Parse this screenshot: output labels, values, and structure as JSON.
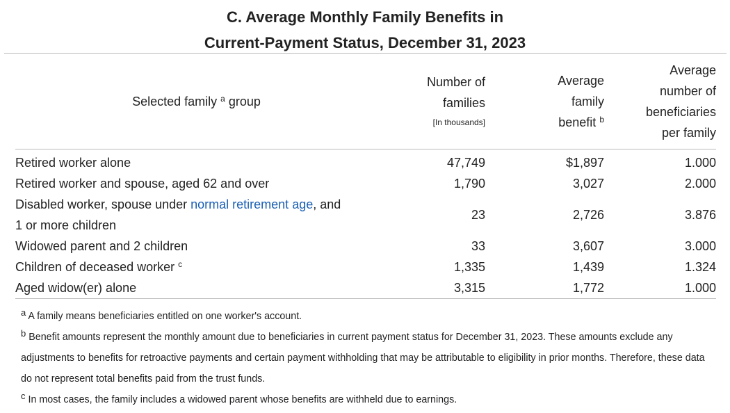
{
  "title": [
    "C. Average Monthly Family Benefits in",
    "Current-Payment Status, December 31, 2023"
  ],
  "headers": {
    "group": "Selected family",
    "group_sup": "a",
    "group_tail": "group",
    "families": [
      "Number of",
      "families"
    ],
    "families_note": "[In thousands]",
    "benefit": [
      "Average",
      "family",
      "benefit"
    ],
    "benefit_sup": "b",
    "beneficiaries": [
      "Average",
      "number of",
      "beneficiaries",
      "per family"
    ]
  },
  "rows": [
    {
      "label": "Retired worker alone",
      "families": "47,749",
      "benefit": "$1,897",
      "beneficiaries": "1.000"
    },
    {
      "label": "Retired worker and spouse, aged 62 and over",
      "families": "1,790",
      "benefit": "3,027",
      "beneficiaries": "2.000"
    },
    {
      "label_pre": "Disabled worker, spouse under ",
      "label_link": "normal retirement age",
      "label_post": ", and",
      "label_line2": "1 or more children",
      "families": "23",
      "benefit": "2,726",
      "beneficiaries": "3.876"
    },
    {
      "label": "Widowed parent and 2 children",
      "families": "33",
      "benefit": "3,607",
      "beneficiaries": "3.000"
    },
    {
      "label": "Children of deceased worker",
      "label_sup": "c",
      "families": "1,335",
      "benefit": "1,439",
      "beneficiaries": "1.324"
    },
    {
      "label": "Aged widow(er) alone",
      "families": "3,315",
      "benefit": "1,772",
      "beneficiaries": "1.000"
    }
  ],
  "footnotes": [
    {
      "mark": "a",
      "text": "A family means beneficiaries entitled on one worker's account."
    },
    {
      "mark": "b",
      "text": "Benefit amounts represent the monthly amount due to beneficiaries in current payment status for December 31, 2023. These amounts exclude any adjustments to benefits for retroactive payments and certain payment withholding that may be attributable to eligibility in prior months. Therefore, these data do not represent total benefits paid from the trust funds."
    },
    {
      "mark": "c",
      "text": "In most cases, the family includes a widowed parent whose benefits are withheld due to earnings."
    }
  ],
  "colors": {
    "link": "#1a5fb4",
    "text": "#222222",
    "rule": "#bbbbbb"
  }
}
